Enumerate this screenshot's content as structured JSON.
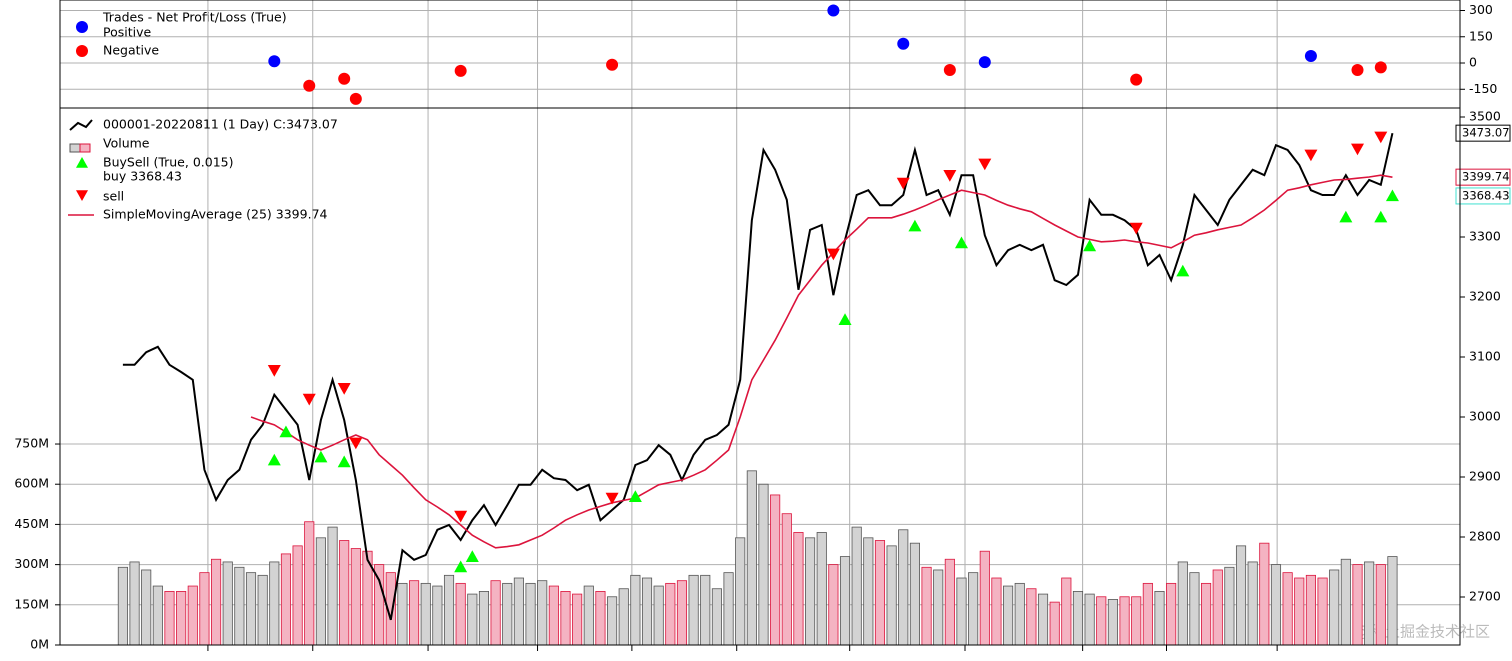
{
  "chart_data": [
    {
      "type": "scatter",
      "legend_title": "Trades - Net Profit/Loss (True)",
      "xlim": [
        -5.4,
        114.8
      ],
      "xticks": [
        7.3,
        16.3,
        26.2,
        35.6,
        43.7,
        52.7,
        62.4,
        72.3,
        82.4,
        89.6,
        99.1
      ],
      "ylim": [
        -257,
        360
      ],
      "yticks": [
        300,
        150,
        0,
        -150
      ],
      "grid": true,
      "series": [
        {
          "name": "Positive",
          "color": "#0000ff",
          "x": [
            13,
            61,
            67,
            74,
            102
          ],
          "values": [
            10,
            300,
            110,
            5,
            40
          ]
        },
        {
          "name": "Negative",
          "color": "#ff0000",
          "x": [
            16,
            19,
            20,
            29,
            42,
            71,
            87,
            106,
            108
          ],
          "values": [
            -130,
            -90,
            -205,
            -45,
            -10,
            -40,
            -95,
            -40,
            -25
          ]
        }
      ]
    },
    {
      "type": "line",
      "xlim": [
        -5.4,
        114.8
      ],
      "xticks": [
        7.3,
        16.3,
        26.2,
        35.6,
        43.7,
        52.7,
        62.4,
        72.3,
        82.4,
        89.6,
        99.1
      ],
      "ylim": [
        2620,
        3515
      ],
      "yticks": [
        2700,
        2800,
        2900,
        3000,
        3100,
        3200,
        3300,
        3400,
        3500
      ],
      "grid": true,
      "series": [
        {
          "name": "000001-20220811 (1 Day) C:3473.07",
          "color": "#000000",
          "values": [
            3087,
            3087,
            3108,
            3117,
            3087,
            3075,
            3062,
            2912,
            2862,
            2895,
            2912,
            2962,
            2987,
            3037,
            3012,
            2987,
            2895,
            2995,
            3062,
            2995,
            2895,
            2762,
            2728,
            2662,
            2778,
            2762,
            2770,
            2812,
            2820,
            2795,
            2828,
            2853,
            2820,
            2853,
            2887,
            2887,
            2912,
            2898,
            2895,
            2878,
            2887,
            2828,
            2845,
            2862,
            2920,
            2928,
            2953,
            2937,
            2895,
            2937,
            2962,
            2970,
            2987,
            3062,
            3328,
            3445,
            3412,
            3362,
            3212,
            3312,
            3320,
            3203,
            3295,
            3370,
            3378,
            3353,
            3353,
            3370,
            3445,
            3370,
            3378,
            3337,
            3403,
            3403,
            3303,
            3253,
            3278,
            3287,
            3278,
            3287,
            3228,
            3220,
            3237,
            3362,
            3337,
            3337,
            3328,
            3312,
            3253,
            3270,
            3228,
            3287,
            3370,
            3345,
            3320,
            3362,
            3387,
            3412,
            3403,
            3453,
            3445,
            3420,
            3378,
            3370,
            3370,
            3403,
            3370,
            3395,
            3387,
            3473.07
          ]
        },
        {
          "name": "SimpleMovingAverage (25) 3399.74",
          "color": "#dc143c",
          "values": [
            null,
            null,
            null,
            null,
            null,
            null,
            null,
            null,
            null,
            null,
            null,
            3000,
            2993,
            2987,
            2975,
            2962,
            2953,
            2945,
            2953,
            2962,
            2970,
            2962,
            2937,
            2920,
            2903,
            2882,
            2862,
            2850,
            2837,
            2820,
            2803,
            2792,
            2782,
            2784,
            2787,
            2795,
            2803,
            2815,
            2828,
            2837,
            2845,
            2851,
            2857,
            2861,
            2865,
            2876,
            2887,
            2891,
            2895,
            2903,
            2912,
            2928,
            2945,
            3000,
            3062,
            3095,
            3128,
            3165,
            3203,
            3228,
            3253,
            3274,
            3295,
            3313,
            3332,
            3332,
            3332,
            3338,
            3345,
            3353,
            3362,
            3370,
            3378,
            3374,
            3370,
            3361,
            3353,
            3347,
            3342,
            3331,
            3320,
            3310,
            3300,
            3296,
            3292,
            3293,
            3295,
            3292,
            3290,
            3286,
            3282,
            3292,
            3303,
            3307,
            3312,
            3316,
            3320,
            3332,
            3345,
            3361,
            3378,
            3382,
            3387,
            3391,
            3395,
            3396,
            3398,
            3400,
            3403,
            3399.74
          ]
        }
      ],
      "volume": {
        "name": "Volume",
        "up_color": "#d3d3d3",
        "up_edge": "#555555",
        "down_color": "#f4b3c2",
        "down_edge": "#dc143c",
        "ylim": [
          0,
          2004
        ],
        "yticks": [
          {
            "value": 0,
            "label": "0M"
          },
          {
            "value": 150,
            "label": "150M"
          },
          {
            "value": 300,
            "label": "300M"
          },
          {
            "value": 450,
            "label": "450M"
          },
          {
            "value": 600,
            "label": "600M"
          },
          {
            "value": 750,
            "label": "750M"
          }
        ],
        "values": [
          290,
          310,
          280,
          220,
          200,
          200,
          220,
          270,
          320,
          310,
          290,
          270,
          260,
          310,
          340,
          370,
          460,
          400,
          440,
          390,
          360,
          350,
          300,
          270,
          230,
          240,
          230,
          220,
          260,
          230,
          190,
          200,
          240,
          230,
          250,
          230,
          240,
          220,
          200,
          190,
          220,
          200,
          180,
          210,
          260,
          250,
          220,
          230,
          240,
          260,
          260,
          210,
          270,
          400,
          650,
          600,
          560,
          490,
          420,
          400,
          420,
          300,
          330,
          440,
          400,
          390,
          370,
          430,
          380,
          290,
          280,
          320,
          250,
          270,
          350,
          250,
          220,
          230,
          210,
          190,
          160,
          250,
          200,
          190,
          180,
          170,
          180,
          180,
          230,
          200,
          230,
          310,
          270,
          230,
          280,
          290,
          370,
          310,
          380,
          300,
          270,
          250,
          260,
          250,
          280,
          320,
          300,
          310,
          300,
          330
        ]
      },
      "buy": {
        "name": "BuySell (True, 0.015)",
        "label": "buy 3368.43",
        "color": "#00ff00",
        "x": [
          13,
          14,
          17,
          19,
          29,
          30,
          44,
          62,
          68,
          72,
          83,
          91,
          105,
          108,
          109
        ],
        "values": [
          2928,
          2975,
          2933,
          2925,
          2750,
          2767,
          2867,
          3162,
          3318,
          3290,
          3285,
          3243,
          3333,
          3333,
          3368.43
        ]
      },
      "sell": {
        "name": "sell",
        "color": "#ff0000",
        "x": [
          13,
          16,
          19,
          20,
          29,
          42,
          61,
          67,
          71,
          74,
          87,
          102,
          106,
          108
        ],
        "values": [
          3078,
          3030,
          3048,
          2957,
          2835,
          2865,
          3272,
          3390,
          3403,
          3422,
          3315,
          3437,
          3447,
          3467
        ]
      }
    },
    {
      "watermark": "@稀土掘金技术社区"
    }
  ]
}
